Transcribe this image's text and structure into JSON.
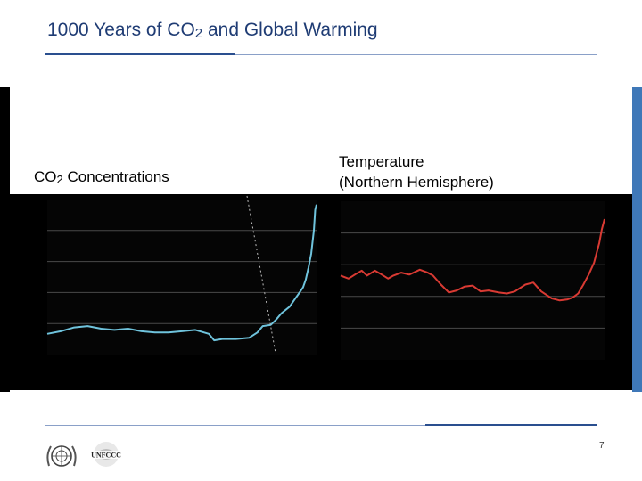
{
  "slide": {
    "title_prefix": "1000 Years of CO",
    "title_sub": "2",
    "title_suffix": " and Global Warming",
    "page_number": "7"
  },
  "colors": {
    "title": "#1f3c74",
    "co2_line": "#6fc3dc",
    "temp_line": "#d93a33",
    "panel_bg": "#000000",
    "gridline": "#4a4a4a"
  },
  "chart_data": [
    {
      "type": "line",
      "title_prefix": "CO",
      "title_sub": "2",
      "title_suffix": " Concentrations",
      "xlabel": "",
      "ylabel": "",
      "xlim": [
        1000,
        2000
      ],
      "ylim": [
        260,
        380
      ],
      "grid": true,
      "x": [
        1000,
        1050,
        1100,
        1150,
        1200,
        1250,
        1300,
        1350,
        1400,
        1450,
        1500,
        1550,
        1600,
        1620,
        1650,
        1700,
        1750,
        1780,
        1800,
        1830,
        1850,
        1870,
        1900,
        1920,
        1940,
        1950,
        1960,
        1970,
        1980,
        1990,
        1995,
        2000
      ],
      "series": [
        {
          "name": "CO2",
          "values": [
            276,
            278,
            281,
            282,
            280,
            279,
            280,
            278,
            277,
            277,
            278,
            279,
            276,
            271,
            272,
            272,
            273,
            277,
            282,
            283,
            287,
            292,
            297,
            303,
            309,
            312,
            318,
            327,
            338,
            356,
            372,
            376
          ]
        }
      ]
    },
    {
      "type": "line",
      "title_line1": "Temperature",
      "title_line2": "(Northern Hemisphere)",
      "xlabel": "",
      "ylabel": "",
      "xlim": [
        1000,
        2000
      ],
      "ylim": [
        -1.0,
        0.6
      ],
      "grid": true,
      "x": [
        1000,
        1030,
        1060,
        1080,
        1100,
        1130,
        1150,
        1180,
        1200,
        1230,
        1260,
        1300,
        1330,
        1350,
        1380,
        1410,
        1440,
        1470,
        1500,
        1530,
        1560,
        1600,
        1630,
        1660,
        1700,
        1730,
        1760,
        1800,
        1830,
        1860,
        1880,
        1900,
        1920,
        1940,
        1960,
        1980,
        1990,
        2000
      ],
      "series": [
        {
          "name": "Temperature",
          "values": [
            -0.15,
            -0.18,
            -0.13,
            -0.1,
            -0.15,
            -0.1,
            -0.13,
            -0.18,
            -0.15,
            -0.12,
            -0.14,
            -0.09,
            -0.12,
            -0.15,
            -0.24,
            -0.32,
            -0.3,
            -0.26,
            -0.25,
            -0.31,
            -0.3,
            -0.32,
            -0.33,
            -0.31,
            -0.24,
            -0.22,
            -0.31,
            -0.38,
            -0.4,
            -0.39,
            -0.37,
            -0.33,
            -0.24,
            -0.14,
            -0.02,
            0.18,
            0.32,
            0.42
          ]
        }
      ]
    }
  ]
}
